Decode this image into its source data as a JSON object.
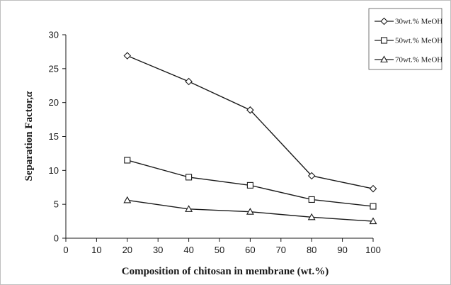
{
  "chart_data": {
    "type": "line",
    "title": "",
    "xlabel": "Composition of chitosan in membrane (wt.%)",
    "ylabel_text": "Separation Factor,",
    "ylabel_symbol": "α",
    "xlim": [
      0,
      100
    ],
    "ylim": [
      0,
      30
    ],
    "xticks": [
      0,
      10,
      20,
      30,
      40,
      50,
      60,
      70,
      80,
      90,
      100
    ],
    "yticks": [
      0,
      5,
      10,
      15,
      20,
      25,
      30
    ],
    "grid": false,
    "legend_position": "top-right",
    "x": [
      20,
      40,
      60,
      80,
      100
    ],
    "series": [
      {
        "name": "30wt.% MeOH",
        "marker": "diamond",
        "values": [
          26.9,
          23.1,
          18.9,
          9.2,
          7.3
        ]
      },
      {
        "name": "50wt.% MeOH",
        "marker": "square",
        "values": [
          11.5,
          9.0,
          7.8,
          5.7,
          4.7
        ]
      },
      {
        "name": "70wt.% MeOH",
        "marker": "triangle",
        "values": [
          5.6,
          4.3,
          3.9,
          3.1,
          2.5
        ]
      }
    ]
  }
}
